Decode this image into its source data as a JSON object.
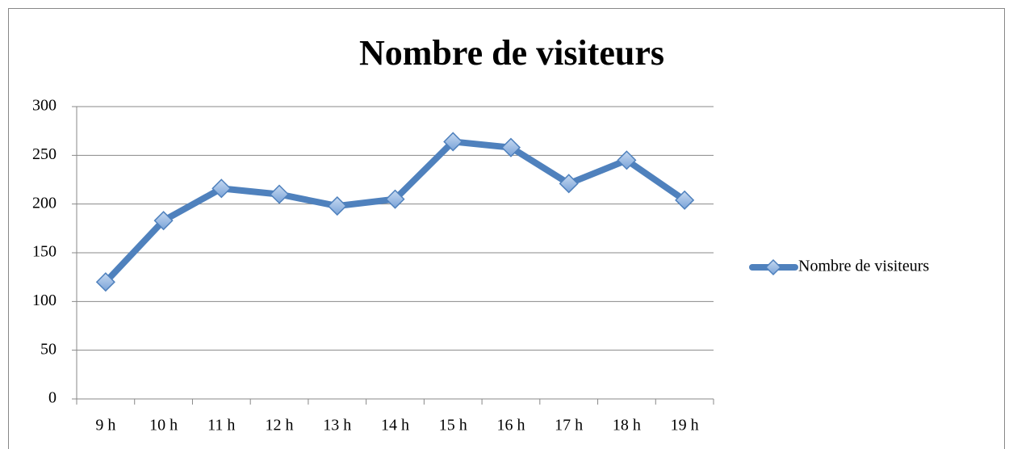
{
  "chart_data": {
    "type": "line",
    "title": "Nombre de visiteurs",
    "categories": [
      "9 h",
      "10 h",
      "11 h",
      "12 h",
      "13 h",
      "14 h",
      "15 h",
      "16 h",
      "17 h",
      "18 h",
      "19 h"
    ],
    "series": [
      {
        "name": "Nombre de visiteurs",
        "color": "#4f81bd",
        "values": [
          120,
          183,
          216,
          210,
          198,
          205,
          264,
          258,
          221,
          245,
          204
        ]
      }
    ],
    "ylim": [
      0,
      300
    ],
    "yticks": [
      0,
      50,
      100,
      150,
      200,
      250,
      300
    ],
    "grid": true,
    "legend": "right"
  }
}
